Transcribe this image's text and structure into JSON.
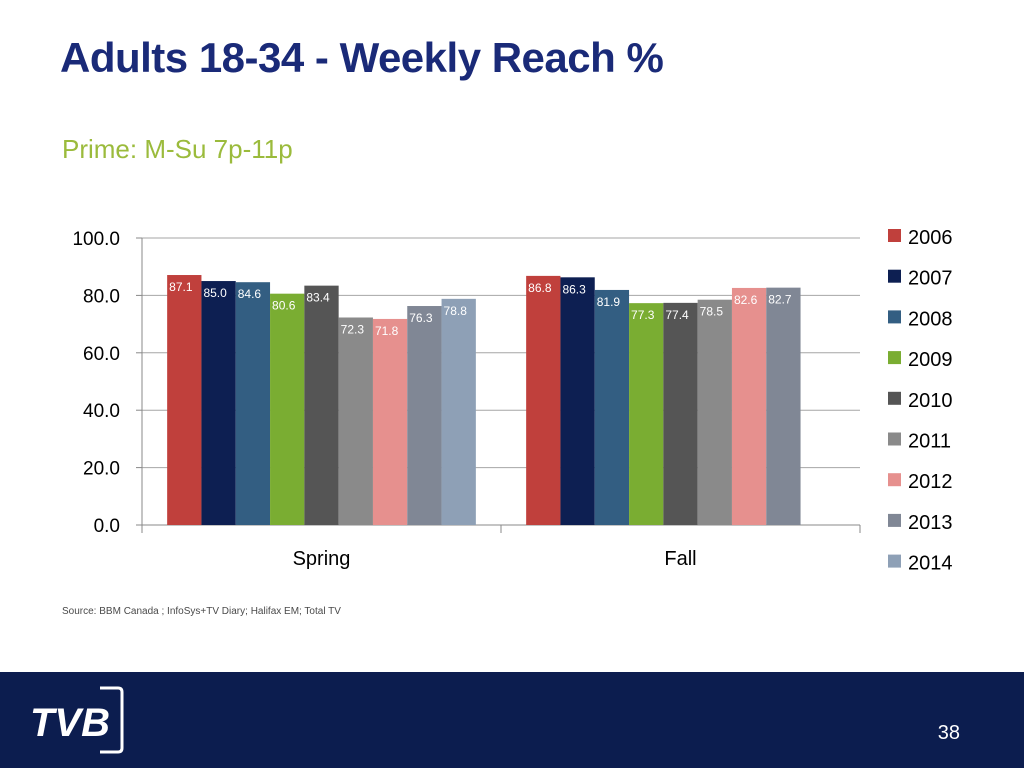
{
  "slide": {
    "title": "Adults 18-34 - Weekly Reach %",
    "subtitle": "Prime: M-Su 7p-11p",
    "source": "Source: BBM Canada ; InfoSys+TV Diary; Halifax EM; Total TV",
    "page_number": "38",
    "logo_text": "TVB"
  },
  "colors": {
    "title": "#1a2a78",
    "subtitle": "#9bbb3c",
    "footer": "#0c1d4f"
  },
  "chart_data": {
    "type": "bar",
    "categories": [
      "Spring",
      "Fall"
    ],
    "ylim": [
      0,
      100
    ],
    "yticks": [
      0,
      20,
      40,
      60,
      80,
      100
    ],
    "ytick_labels": [
      "0.0",
      "20.0",
      "40.0",
      "60.0",
      "80.0",
      "100.0"
    ],
    "grid": true,
    "legend_position": "right",
    "series": [
      {
        "name": "2006",
        "color": "#c0403c",
        "values": [
          87.1,
          86.8
        ],
        "labels": [
          "87.1",
          "86.8"
        ]
      },
      {
        "name": "2007",
        "color": "#0d1f52",
        "values": [
          85.0,
          86.3
        ],
        "labels": [
          "85.0",
          "86.3"
        ]
      },
      {
        "name": "2008",
        "color": "#335e82",
        "values": [
          84.6,
          81.9
        ],
        "labels": [
          "84.6",
          "81.9"
        ]
      },
      {
        "name": "2009",
        "color": "#7aad32",
        "values": [
          80.6,
          77.3
        ],
        "labels": [
          "80.6",
          "77.3"
        ]
      },
      {
        "name": "2010",
        "color": "#555555",
        "values": [
          83.4,
          77.4
        ],
        "labels": [
          "83.4",
          "77.4"
        ]
      },
      {
        "name": "2011",
        "color": "#8a8a8a",
        "values": [
          72.3,
          78.5
        ],
        "labels": [
          "72.3",
          "78.5"
        ]
      },
      {
        "name": "2012",
        "color": "#e6908e",
        "values": [
          71.8,
          82.6
        ],
        "labels": [
          "71.8",
          "82.6"
        ]
      },
      {
        "name": "2013",
        "color": "#808795",
        "values": [
          76.3,
          82.7
        ],
        "labels": [
          "76.3",
          "82.7"
        ]
      },
      {
        "name": "2014",
        "color": "#8ea0b6",
        "values": [
          78.8,
          null
        ],
        "labels": [
          "78.8",
          ""
        ]
      }
    ]
  }
}
